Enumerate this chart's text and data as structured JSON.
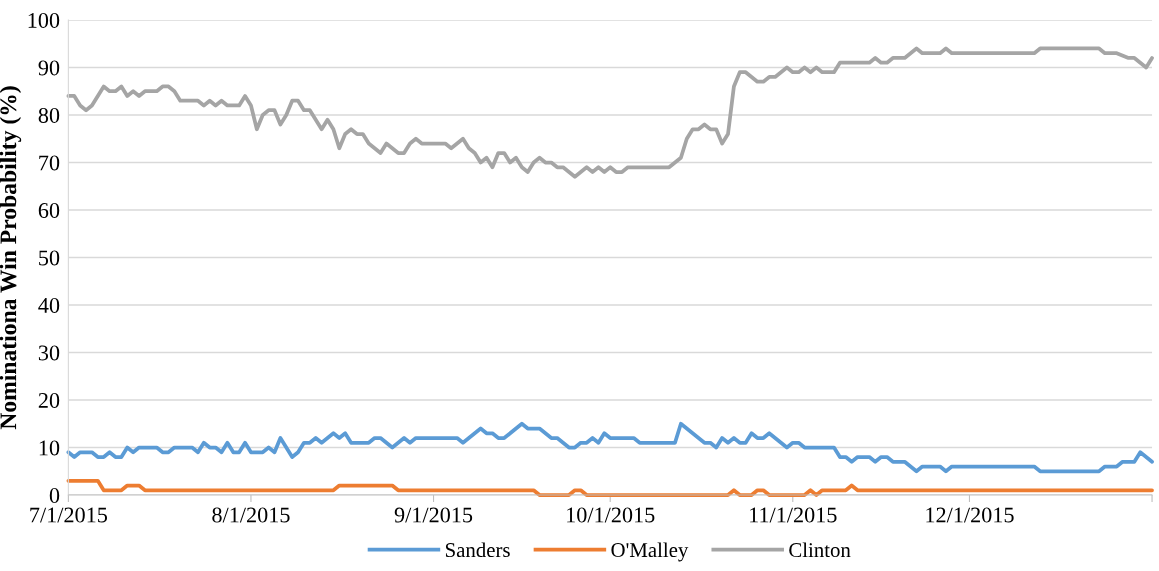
{
  "chart_data": {
    "type": "line",
    "ylabel": "Nominationa Win Probability (%)",
    "xlim": [
      "2015-07-01",
      "2016-01-01"
    ],
    "xticks": [
      {
        "value": "2015-07-01",
        "label": "7/1/2015"
      },
      {
        "value": "2015-08-01",
        "label": "8/1/2015"
      },
      {
        "value": "2015-09-01",
        "label": "9/1/2015"
      },
      {
        "value": "2015-10-01",
        "label": "10/1/2015"
      },
      {
        "value": "2015-11-01",
        "label": "11/1/2015"
      },
      {
        "value": "2015-12-01",
        "label": "12/1/2015"
      },
      {
        "value": "2016-01-01",
        "label": null
      }
    ],
    "ylim": [
      0,
      100
    ],
    "yticks": [
      0,
      10,
      20,
      30,
      40,
      50,
      60,
      70,
      80,
      90,
      100
    ],
    "grid": "y",
    "legend": "bottom",
    "marker": "none",
    "line_style": "solid",
    "series": [
      {
        "name": "Sanders",
        "color": "#5b9bd5",
        "x": [
          "2015-07-01",
          "2015-07-02",
          "2015-07-03",
          "2015-07-05",
          "2015-07-06",
          "2015-07-07",
          "2015-07-08",
          "2015-07-09",
          "2015-07-10",
          "2015-07-11",
          "2015-07-12",
          "2015-07-13",
          "2015-07-16",
          "2015-07-17",
          "2015-07-18",
          "2015-07-19",
          "2015-07-22",
          "2015-07-23",
          "2015-07-24",
          "2015-07-25",
          "2015-07-26",
          "2015-07-27",
          "2015-07-28",
          "2015-07-29",
          "2015-07-30",
          "2015-07-31",
          "2015-08-01",
          "2015-08-03",
          "2015-08-04",
          "2015-08-05",
          "2015-08-06",
          "2015-08-08",
          "2015-08-09",
          "2015-08-10",
          "2015-08-11",
          "2015-08-12",
          "2015-08-13",
          "2015-08-15",
          "2015-08-16",
          "2015-08-17",
          "2015-08-18",
          "2015-08-21",
          "2015-08-22",
          "2015-08-23",
          "2015-08-25",
          "2015-08-27",
          "2015-08-28",
          "2015-08-29",
          "2015-09-05",
          "2015-09-06",
          "2015-09-09",
          "2015-09-10",
          "2015-09-11",
          "2015-09-12",
          "2015-09-13",
          "2015-09-16",
          "2015-09-17",
          "2015-09-19",
          "2015-09-21",
          "2015-09-22",
          "2015-09-24",
          "2015-09-25",
          "2015-09-26",
          "2015-09-27",
          "2015-09-28",
          "2015-09-29",
          "2015-09-30",
          "2015-10-01",
          "2015-10-05",
          "2015-10-06",
          "2015-10-12",
          "2015-10-13",
          "2015-10-17",
          "2015-10-18",
          "2015-10-19",
          "2015-10-20",
          "2015-10-21",
          "2015-10-22",
          "2015-10-23",
          "2015-10-24",
          "2015-10-25",
          "2015-10-26",
          "2015-10-27",
          "2015-10-28",
          "2015-10-31",
          "2015-11-01",
          "2015-11-02",
          "2015-11-03",
          "2015-11-08",
          "2015-11-09",
          "2015-11-10",
          "2015-11-11",
          "2015-11-12",
          "2015-11-14",
          "2015-11-15",
          "2015-11-16",
          "2015-11-17",
          "2015-11-18",
          "2015-11-20",
          "2015-11-22",
          "2015-11-23",
          "2015-11-26",
          "2015-11-27",
          "2015-11-28",
          "2015-12-12",
          "2015-12-13",
          "2015-12-23",
          "2015-12-24",
          "2015-12-26",
          "2015-12-27",
          "2015-12-29",
          "2015-12-30",
          "2016-01-01"
        ],
        "values": [
          9,
          8,
          9,
          9,
          8,
          8,
          9,
          8,
          8,
          10,
          9,
          10,
          10,
          9,
          9,
          10,
          10,
          9,
          11,
          10,
          10,
          9,
          11,
          9,
          9,
          11,
          9,
          9,
          10,
          9,
          12,
          8,
          9,
          11,
          11,
          12,
          11,
          13,
          12,
          13,
          11,
          11,
          12,
          12,
          10,
          12,
          11,
          12,
          12,
          11,
          14,
          13,
          13,
          12,
          12,
          15,
          14,
          14,
          12,
          12,
          10,
          10,
          11,
          11,
          12,
          11,
          13,
          12,
          12,
          11,
          11,
          15,
          11,
          11,
          10,
          12,
          11,
          12,
          11,
          11,
          13,
          12,
          12,
          13,
          10,
          11,
          11,
          10,
          10,
          8,
          8,
          7,
          8,
          8,
          7,
          8,
          8,
          7,
          7,
          5,
          6,
          6,
          5,
          6,
          6,
          5,
          5,
          6,
          6,
          7,
          7,
          9,
          7
        ]
      },
      {
        "name": "O'Malley",
        "color": "#ed7d31",
        "x": [
          "2015-07-01",
          "2015-07-06",
          "2015-07-07",
          "2015-07-10",
          "2015-07-11",
          "2015-07-13",
          "2015-07-14",
          "2015-08-15",
          "2015-08-16",
          "2015-08-25",
          "2015-08-26",
          "2015-09-18",
          "2015-09-19",
          "2015-09-24",
          "2015-09-25",
          "2015-09-26",
          "2015-09-27",
          "2015-10-21",
          "2015-10-22",
          "2015-10-23",
          "2015-10-25",
          "2015-10-26",
          "2015-10-27",
          "2015-10-28",
          "2015-11-03",
          "2015-11-04",
          "2015-11-05",
          "2015-11-06",
          "2015-11-10",
          "2015-11-11",
          "2015-11-12",
          "2016-01-01"
        ],
        "values": [
          3,
          3,
          1,
          1,
          2,
          2,
          1,
          1,
          2,
          2,
          1,
          1,
          0,
          0,
          1,
          1,
          0,
          0,
          1,
          0,
          0,
          1,
          1,
          0,
          0,
          1,
          0,
          1,
          1,
          2,
          1,
          1
        ]
      },
      {
        "name": "Clinton",
        "color": "#a5a5a5",
        "x": [
          "2015-07-01",
          "2015-07-02",
          "2015-07-03",
          "2015-07-04",
          "2015-07-05",
          "2015-07-07",
          "2015-07-08",
          "2015-07-09",
          "2015-07-10",
          "2015-07-11",
          "2015-07-12",
          "2015-07-13",
          "2015-07-14",
          "2015-07-16",
          "2015-07-17",
          "2015-07-18",
          "2015-07-19",
          "2015-07-20",
          "2015-07-23",
          "2015-07-24",
          "2015-07-25",
          "2015-07-26",
          "2015-07-27",
          "2015-07-28",
          "2015-07-30",
          "2015-07-31",
          "2015-08-01",
          "2015-08-02",
          "2015-08-03",
          "2015-08-04",
          "2015-08-05",
          "2015-08-06",
          "2015-08-07",
          "2015-08-08",
          "2015-08-09",
          "2015-08-10",
          "2015-08-11",
          "2015-08-13",
          "2015-08-14",
          "2015-08-15",
          "2015-08-16",
          "2015-08-17",
          "2015-08-18",
          "2015-08-19",
          "2015-08-20",
          "2015-08-21",
          "2015-08-23",
          "2015-08-24",
          "2015-08-26",
          "2015-08-27",
          "2015-08-28",
          "2015-08-29",
          "2015-08-30",
          "2015-09-03",
          "2015-09-04",
          "2015-09-06",
          "2015-09-07",
          "2015-09-08",
          "2015-09-09",
          "2015-09-10",
          "2015-09-11",
          "2015-09-12",
          "2015-09-13",
          "2015-09-14",
          "2015-09-15",
          "2015-09-16",
          "2015-09-17",
          "2015-09-18",
          "2015-09-19",
          "2015-09-20",
          "2015-09-21",
          "2015-09-22",
          "2015-09-23",
          "2015-09-25",
          "2015-09-27",
          "2015-09-28",
          "2015-09-29",
          "2015-09-30",
          "2015-10-01",
          "2015-10-02",
          "2015-10-03",
          "2015-10-04",
          "2015-10-11",
          "2015-10-13",
          "2015-10-14",
          "2015-10-15",
          "2015-10-16",
          "2015-10-17",
          "2015-10-18",
          "2015-10-19",
          "2015-10-20",
          "2015-10-21",
          "2015-10-22",
          "2015-10-23",
          "2015-10-24",
          "2015-10-26",
          "2015-10-27",
          "2015-10-28",
          "2015-10-29",
          "2015-10-31",
          "2015-11-01",
          "2015-11-02",
          "2015-11-03",
          "2015-11-04",
          "2015-11-05",
          "2015-11-06",
          "2015-11-08",
          "2015-11-09",
          "2015-11-14",
          "2015-11-15",
          "2015-11-16",
          "2015-11-17",
          "2015-11-18",
          "2015-11-20",
          "2015-11-22",
          "2015-11-23",
          "2015-11-26",
          "2015-11-27",
          "2015-11-28",
          "2015-12-12",
          "2015-12-13",
          "2015-12-23",
          "2015-12-24",
          "2015-12-26",
          "2015-12-28",
          "2015-12-29",
          "2015-12-31",
          "2016-01-01"
        ],
        "values": [
          84,
          84,
          82,
          81,
          82,
          86,
          85,
          85,
          86,
          84,
          85,
          84,
          85,
          85,
          86,
          86,
          85,
          83,
          83,
          82,
          83,
          82,
          83,
          82,
          82,
          84,
          82,
          77,
          80,
          81,
          81,
          78,
          80,
          83,
          83,
          81,
          81,
          77,
          79,
          77,
          73,
          76,
          77,
          76,
          76,
          74,
          72,
          74,
          72,
          72,
          74,
          75,
          74,
          74,
          73,
          75,
          73,
          72,
          70,
          71,
          69,
          72,
          72,
          70,
          71,
          69,
          68,
          70,
          71,
          70,
          70,
          69,
          69,
          67,
          69,
          68,
          69,
          68,
          69,
          68,
          68,
          69,
          69,
          71,
          75,
          77,
          77,
          78,
          77,
          77,
          74,
          76,
          86,
          89,
          89,
          87,
          87,
          88,
          88,
          90,
          89,
          89,
          90,
          89,
          90,
          89,
          89,
          91,
          91,
          92,
          91,
          91,
          92,
          92,
          94,
          93,
          93,
          94,
          93,
          93,
          94,
          94,
          93,
          93,
          92,
          92,
          90,
          92
        ]
      }
    ]
  }
}
